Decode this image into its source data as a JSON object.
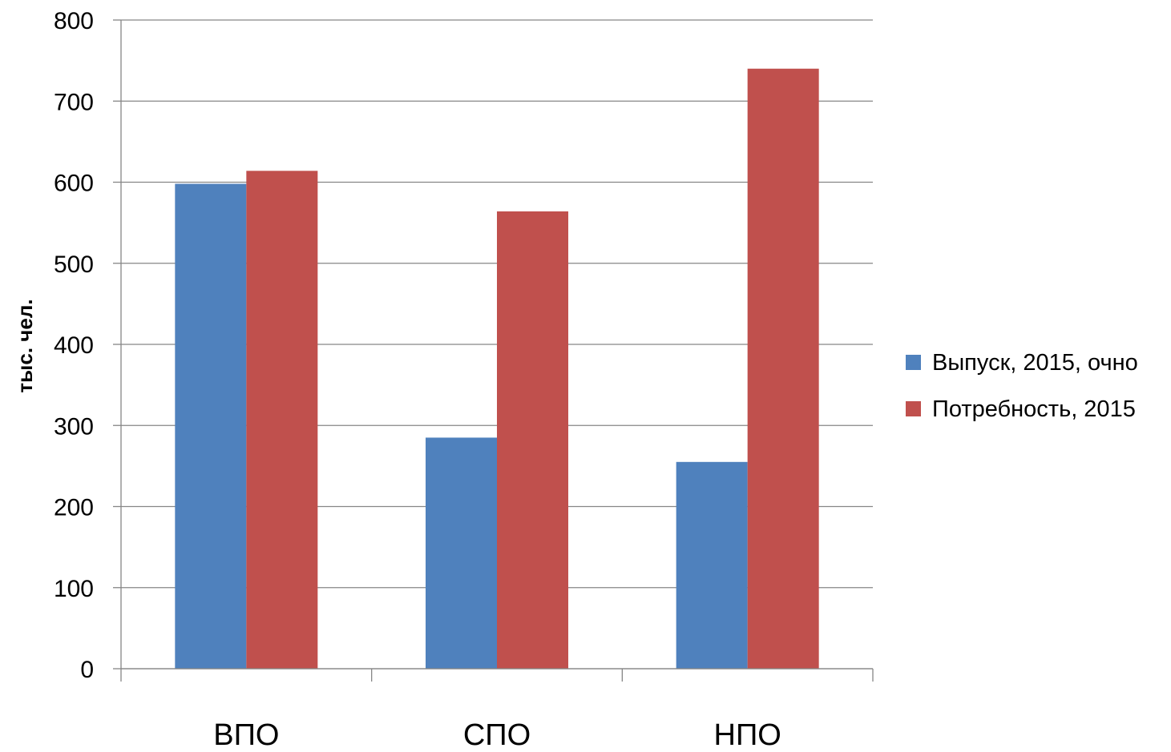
{
  "chart_data": {
    "type": "bar",
    "title": "",
    "xlabel": "",
    "ylabel": "тыс. чел.",
    "categories": [
      "ВПО",
      "СПО",
      "НПО"
    ],
    "series": [
      {
        "name": "Выпуск, 2015, очно",
        "color": "#4F81BD",
        "values": [
          598,
          285,
          255
        ]
      },
      {
        "name": "Потребность, 2015",
        "color": "#C0504D",
        "values": [
          614,
          564,
          740
        ]
      }
    ],
    "ylim": [
      0,
      800
    ],
    "yticks": [
      0,
      100,
      200,
      300,
      400,
      500,
      600,
      700,
      800
    ],
    "ytick_labels": [
      "0",
      "100",
      "200",
      "300",
      "400",
      "500",
      "600",
      "700",
      "800"
    ],
    "grid": true,
    "legend_position": "right"
  }
}
